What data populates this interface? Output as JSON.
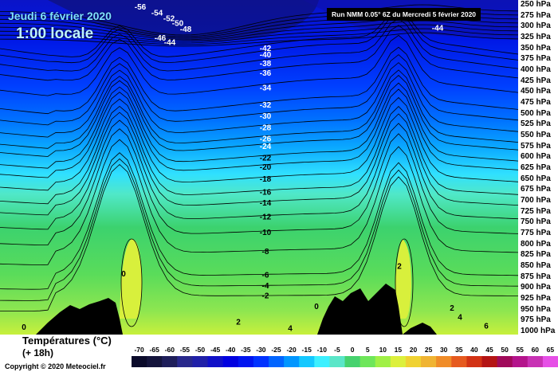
{
  "header": {
    "date": "Jeudi 6 février 2020",
    "time": "1:00 locale",
    "run": "Run NMM 0.05° 6Z du Mercredi 5 février 2020"
  },
  "chart_data": {
    "type": "heatmap",
    "title": "Jeudi 6 février 2020",
    "subtitle": "1:00 locale",
    "pressure_levels": [
      "250 hPa",
      "275 hPa",
      "300 hPa",
      "325 hPa",
      "350 hPa",
      "375 hPa",
      "400 hPa",
      "425 hPa",
      "450 hPa",
      "475 hPa",
      "500 hPa",
      "525 hPa",
      "550 hPa",
      "575 hPa",
      "600 hPa",
      "625 hPa",
      "650 hPa",
      "675 hPa",
      "700 hPa",
      "725 hPa",
      "750 hPa",
      "775 hPa",
      "800 hPa",
      "825 hPa",
      "850 hPa",
      "875 hPa",
      "900 hPa",
      "925 hPa",
      "950 hPa",
      "975 hPa",
      "1000 hPa"
    ],
    "center_column_labels": [
      {
        "value": -42,
        "hpa": 350
      },
      {
        "value": -40,
        "hpa": 364
      },
      {
        "value": -38,
        "hpa": 384
      },
      {
        "value": -36,
        "hpa": 406
      },
      {
        "value": -34,
        "hpa": 440
      },
      {
        "value": -32,
        "hpa": 480
      },
      {
        "value": -30,
        "hpa": 505
      },
      {
        "value": -28,
        "hpa": 532
      },
      {
        "value": -26,
        "hpa": 557
      },
      {
        "value": -24,
        "hpa": 575
      },
      {
        "value": -22,
        "hpa": 601
      },
      {
        "value": -20,
        "hpa": 622
      },
      {
        "value": -18,
        "hpa": 650
      },
      {
        "value": -16,
        "hpa": 680
      },
      {
        "value": -14,
        "hpa": 705
      },
      {
        "value": -12,
        "hpa": 737
      },
      {
        "value": -10,
        "hpa": 772
      },
      {
        "value": -8,
        "hpa": 816
      },
      {
        "value": -6,
        "hpa": 870
      },
      {
        "value": -4,
        "hpa": 895
      },
      {
        "value": -2,
        "hpa": 918
      }
    ],
    "top_labels": [
      {
        "value": -56,
        "x": 176,
        "hpa": 255
      },
      {
        "value": -54,
        "x": 197,
        "hpa": 268
      },
      {
        "value": -52,
        "x": 212,
        "hpa": 281
      },
      {
        "value": -50,
        "x": 223,
        "hpa": 292
      },
      {
        "value": -48,
        "x": 233,
        "hpa": 306
      },
      {
        "value": -46,
        "x": 201,
        "hpa": 326
      },
      {
        "value": -44,
        "x": 213,
        "hpa": 336
      },
      {
        "value": -44,
        "x": 549,
        "hpa": 303
      }
    ],
    "other_labels": [
      {
        "value": 0,
        "x": 155,
        "hpa": 867
      },
      {
        "value": 0,
        "x": 30,
        "hpa": 990
      },
      {
        "value": 0,
        "x": 397,
        "hpa": 942
      },
      {
        "value": 2,
        "x": 299,
        "hpa": 978
      },
      {
        "value": 2,
        "x": 501,
        "hpa": 850
      },
      {
        "value": 2,
        "x": 567,
        "hpa": 946
      },
      {
        "value": 4,
        "x": 364,
        "hpa": 993
      },
      {
        "value": 4,
        "x": 577,
        "hpa": 967
      },
      {
        "value": 6,
        "x": 610,
        "hpa": 987
      }
    ],
    "legend": {
      "title": "Températures (°C)",
      "subtitle": "(+ 18h)",
      "ticks": [
        -70,
        -65,
        -60,
        -55,
        -50,
        -45,
        -40,
        -35,
        -30,
        -25,
        -20,
        -15,
        -10,
        -5,
        0,
        5,
        10,
        15,
        20,
        25,
        30,
        35,
        40,
        45,
        50,
        55,
        60,
        65
      ]
    },
    "colors": {
      "scale": [
        "#0a0a2a",
        "#14143c",
        "#1e1e5a",
        "#28288c",
        "#2020a8",
        "#1010c8",
        "#0000e0",
        "#0014f0",
        "#0032ff",
        "#0064ff",
        "#0096ff",
        "#14c8ff",
        "#3cf0ff",
        "#5ae6c8",
        "#46d26e",
        "#6ee65a",
        "#a0f046",
        "#dcf03c",
        "#f0d232",
        "#f0b432",
        "#f08c28",
        "#e65a1e",
        "#d23214",
        "#b41414",
        "#a00a5a",
        "#b4148c",
        "#c832b4",
        "#e650e6"
      ],
      "terrain": "#000000",
      "contour": "#000000"
    }
  },
  "copyright": "Copyright © 2020 Meteociel.fr"
}
